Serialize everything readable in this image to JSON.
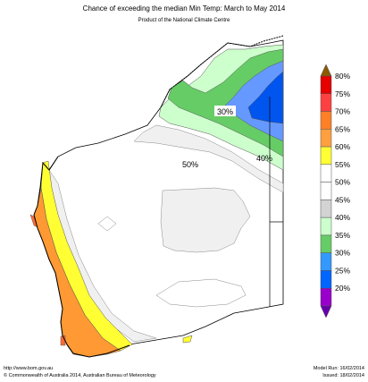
{
  "header": {
    "title": "Chance of exceeding the median Min Temp: March to May 2014",
    "subtitle": "Product of the National Climate Centre"
  },
  "map_labels": [
    "30%",
    "40%",
    "50%"
  ],
  "legend": {
    "items": [
      {
        "label": "80%",
        "color": "#e60000"
      },
      {
        "label": "75%",
        "color": "#ff4040"
      },
      {
        "label": "70%",
        "color": "#ff7f27"
      },
      {
        "label": "65%",
        "color": "#ffa040"
      },
      {
        "label": "60%",
        "color": "#ffff33"
      },
      {
        "label": "55%",
        "color": "#ffffff"
      },
      {
        "label": "50%",
        "color": "#ffffff"
      },
      {
        "label": "45%",
        "color": "#d3d3d3"
      },
      {
        "label": "40%",
        "color": "#ccffcc"
      },
      {
        "label": "35%",
        "color": "#66cc66"
      },
      {
        "label": "30%",
        "color": "#3399ff"
      },
      {
        "label": "25%",
        "color": "#0066ff"
      },
      {
        "label": "20%",
        "color": "#9900cc"
      }
    ],
    "top_arrow_color": "#8b5a00",
    "bottom_arrow_color": "#6600aa"
  },
  "footer": {
    "url": "http://www.bom.gov.au",
    "copyright": "©  Commonwealth of Australia 2014, Australian Bureau of Meteorology",
    "model_run": "Model Run: 16/02/2014",
    "issued": "Issued: 18/02/2014"
  }
}
